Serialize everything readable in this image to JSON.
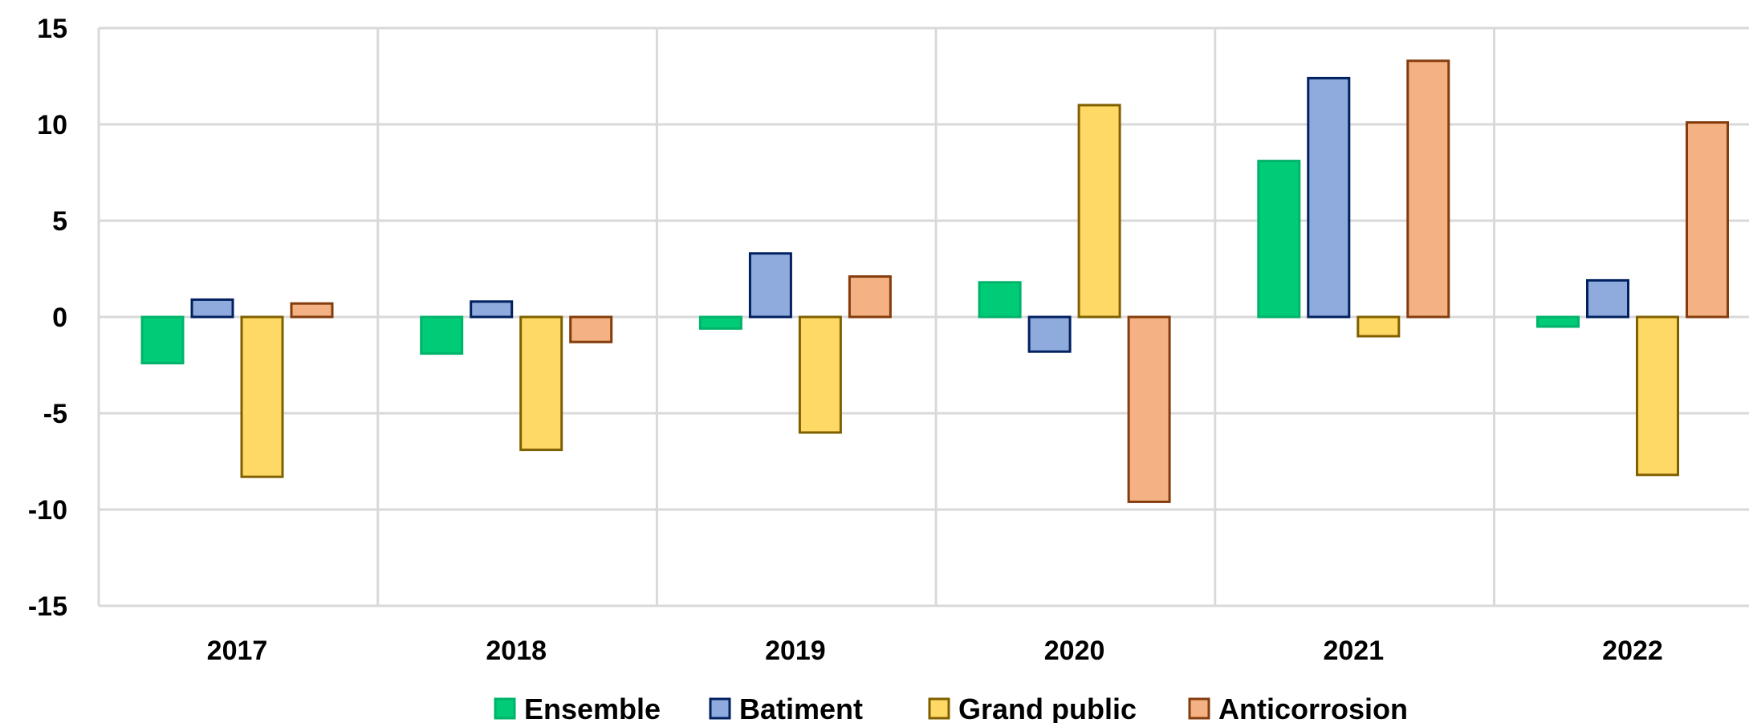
{
  "chart_data": {
    "type": "bar",
    "title": "",
    "xlabel": "",
    "ylabel": "",
    "categories": [
      "2017",
      "2018",
      "2019",
      "2020",
      "2021",
      "2022"
    ],
    "ylim": [
      -15,
      15
    ],
    "yticks": [
      15,
      10,
      5,
      0,
      -5,
      -10,
      -15
    ],
    "grid": true,
    "legend_position": "bottom",
    "series": [
      {
        "name": "Ensemble",
        "fill": "#00CC77",
        "stroke": "#00B36A",
        "values": [
          -2.4,
          -1.9,
          -0.6,
          1.8,
          8.1,
          -0.5
        ]
      },
      {
        "name": "Batiment",
        "fill": "#8FAADC",
        "stroke": "#002060",
        "values": [
          0.9,
          0.8,
          3.3,
          -1.8,
          12.4,
          1.9
        ]
      },
      {
        "name": "Grand public",
        "fill": "#FFD966",
        "stroke": "#7F6000",
        "values": [
          -8.3,
          -6.9,
          -6.0,
          11.0,
          -1.0,
          -8.2
        ]
      },
      {
        "name": "Anticorrosion",
        "fill": "#F4B183",
        "stroke": "#843C0C",
        "values": [
          0.7,
          -1.3,
          2.1,
          -9.6,
          13.3,
          10.1
        ]
      }
    ]
  }
}
